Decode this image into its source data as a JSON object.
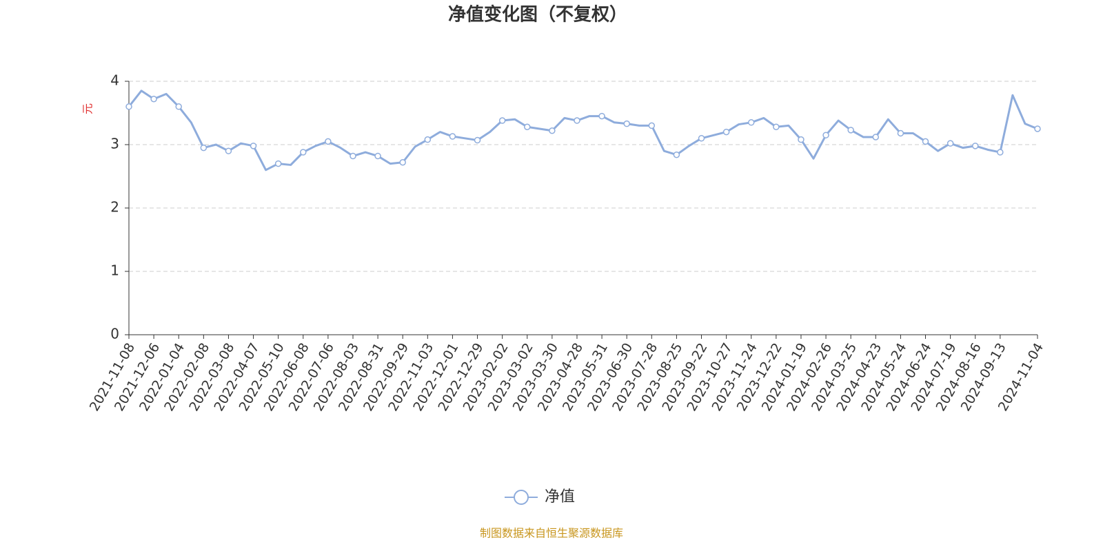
{
  "chart_data": {
    "type": "line",
    "title": "净值变化图（不复权）",
    "y_label": "元",
    "categories": [
      "2021-11-08",
      null,
      "2021-12-06",
      null,
      "2022-01-04",
      null,
      "2022-02-08",
      null,
      "2022-03-08",
      null,
      "2022-04-07",
      null,
      "2022-05-10",
      null,
      "2022-06-08",
      null,
      "2022-07-06",
      null,
      "2022-08-03",
      null,
      "2022-08-31",
      null,
      "2022-09-29",
      null,
      "2022-11-03",
      null,
      "2022-12-01",
      null,
      "2022-12-29",
      null,
      "2023-02-02",
      null,
      "2023-03-02",
      null,
      "2023-03-30",
      null,
      "2023-04-28",
      null,
      "2023-05-31",
      null,
      "2023-06-30",
      null,
      "2023-07-28",
      null,
      "2023-08-25",
      null,
      "2023-09-22",
      null,
      "2023-10-27",
      null,
      "2023-11-24",
      null,
      "2023-12-22",
      null,
      "2024-01-19",
      null,
      "2024-02-26",
      null,
      "2024-03-25",
      null,
      "2024-04-23",
      null,
      "2024-05-24",
      null,
      "2024-06-24",
      null,
      "2024-07-19",
      null,
      "2024-08-16",
      null,
      "2024-09-13",
      null,
      null,
      "2024-11-04"
    ],
    "series": [
      {
        "name": "净值",
        "color": "#8eacdc",
        "values": [
          3.6,
          3.85,
          3.72,
          3.8,
          3.6,
          3.35,
          2.95,
          3.0,
          2.9,
          3.02,
          2.98,
          2.6,
          2.7,
          2.68,
          2.88,
          2.98,
          3.05,
          2.95,
          2.82,
          2.88,
          2.82,
          2.7,
          2.72,
          2.97,
          3.08,
          3.2,
          3.13,
          3.1,
          3.07,
          3.2,
          3.38,
          3.4,
          3.28,
          3.25,
          3.22,
          3.42,
          3.38,
          3.45,
          3.45,
          3.35,
          3.33,
          3.3,
          3.3,
          2.9,
          2.84,
          2.98,
          3.1,
          3.15,
          3.2,
          3.32,
          3.35,
          3.42,
          3.28,
          3.3,
          3.08,
          2.78,
          3.15,
          3.38,
          3.23,
          3.12,
          3.12,
          3.4,
          3.18,
          3.18,
          3.05,
          2.9,
          3.02,
          2.95,
          2.98,
          2.92,
          2.88,
          3.78,
          3.33,
          3.25
        ]
      }
    ],
    "ylim": [
      0,
      4
    ],
    "yticks": [
      0,
      1,
      2,
      3,
      4
    ],
    "grid": true,
    "legend": "bottom",
    "source": "制图数据来自恒生聚源数据库"
  }
}
